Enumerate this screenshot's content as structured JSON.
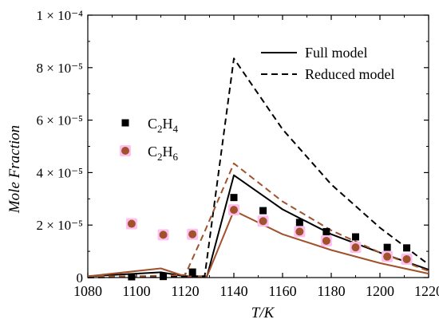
{
  "chart_data": {
    "type": "line",
    "xlabel": "T/K",
    "ylabel": "Mole Fraction",
    "xlim": [
      1080,
      1220
    ],
    "ylim": [
      0,
      0.0001
    ],
    "x_ticks": [
      1080,
      1100,
      1120,
      1140,
      1160,
      1180,
      1200,
      1220
    ],
    "y_ticks": [
      {
        "value": 0,
        "label": "0"
      },
      {
        "value": 2e-05,
        "label": "2 × 10⁻⁵"
      },
      {
        "value": 4e-05,
        "label": "4 × 10⁻⁵"
      },
      {
        "value": 6e-05,
        "label": "6 × 10⁻⁵"
      },
      {
        "value": 8e-05,
        "label": "8 × 10⁻⁵"
      },
      {
        "value": 0.0001,
        "label": "1 × 10⁻⁴"
      }
    ],
    "grid": false,
    "legend_lines": {
      "placement": "top-right",
      "entries": [
        {
          "name": "Full model",
          "style": "solid"
        },
        {
          "name": "Reduced model",
          "style": "dashed"
        }
      ]
    },
    "legend_markers": {
      "placement": "center-left",
      "entries": [
        {
          "name": "C2H4",
          "main": "C",
          "sub1": "2",
          "mid": "H",
          "sub2": "4",
          "marker": "square",
          "color": "#000000"
        },
        {
          "name": "C2H6",
          "main": "C",
          "sub1": "2",
          "mid": "H",
          "sub2": "6",
          "marker": "circle",
          "color": "#a0522d",
          "halo": "#ffc0f0"
        }
      ]
    },
    "series": [
      {
        "name": "C2H4",
        "kind": "scatter",
        "marker": "square",
        "color": "#000000",
        "x": [
          1098,
          1111,
          1123,
          1140,
          1152,
          1167,
          1178,
          1190,
          1203,
          1211
        ],
        "y": [
          3e-07,
          4e-07,
          2.1e-06,
          3.05e-05,
          2.55e-05,
          2.1e-05,
          1.75e-05,
          1.55e-05,
          1.15e-05,
          1.13e-05
        ]
      },
      {
        "name": "C2H6",
        "kind": "scatter",
        "marker": "circle",
        "color": "#a0522d",
        "x": [
          1098,
          1111,
          1123,
          1140,
          1152,
          1167,
          1178,
          1190,
          1203,
          1211
        ],
        "y": [
          2.05e-05,
          1.63e-05,
          1.65e-05,
          2.58e-05,
          2.15e-05,
          1.75e-05,
          1.4e-05,
          1.15e-05,
          8e-06,
          7e-06
        ]
      },
      {
        "kind": "line",
        "style": "solid",
        "color": "#000000",
        "x": [
          1080,
          1110,
          1120,
          1129,
          1140,
          1160,
          1180,
          1200,
          1220
        ],
        "y": [
          5e-07,
          2e-06,
          5e-07,
          5e-07,
          3.9e-05,
          2.6e-05,
          1.65e-05,
          9.5e-06,
          3e-06
        ]
      },
      {
        "kind": "line",
        "style": "solid",
        "color": "#a0522d",
        "x": [
          1080,
          1110,
          1120,
          1129,
          1140,
          1160,
          1180,
          1200,
          1220
        ],
        "y": [
          5e-07,
          3.5e-06,
          5e-07,
          5e-07,
          2.55e-05,
          1.65e-05,
          1.05e-05,
          5.5e-06,
          1.5e-06
        ]
      },
      {
        "kind": "line",
        "style": "dashed",
        "color": "#000000",
        "x": [
          1080,
          1120,
          1128,
          1140,
          1160,
          1180,
          1200,
          1220
        ],
        "y": [
          0,
          5e-07,
          5e-07,
          8.35e-05,
          5.65e-05,
          3.55e-05,
          1.9e-05,
          5e-06
        ]
      },
      {
        "kind": "line",
        "style": "dashed",
        "color": "#a0522d",
        "x": [
          1080,
          1100,
          1120,
          1128,
          1140,
          1160,
          1180,
          1200,
          1220
        ],
        "y": [
          5e-07,
          5e-07,
          1e-06,
          1.75e-05,
          4.35e-05,
          2.9e-05,
          1.8e-05,
          9.5e-06,
          2.5e-06
        ]
      }
    ]
  }
}
